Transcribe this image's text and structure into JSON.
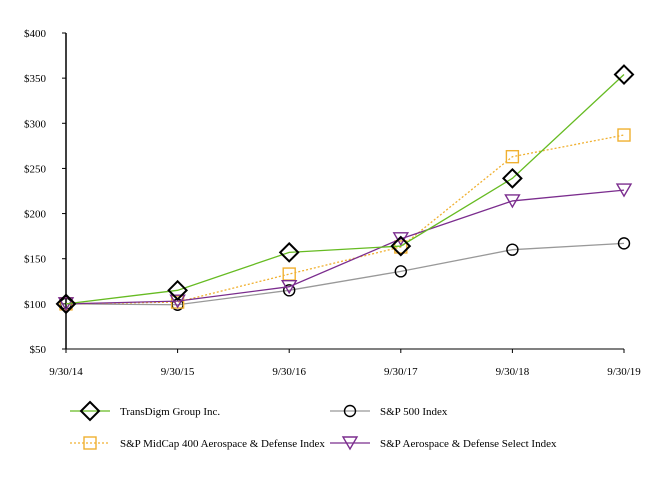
{
  "chart_data": {
    "type": "line",
    "title": "",
    "xlabel": "",
    "ylabel": "",
    "categories": [
      "9/30/14",
      "9/30/15",
      "9/30/16",
      "9/30/17",
      "9/30/18",
      "9/30/19"
    ],
    "ylim": [
      50,
      400
    ],
    "yticks": [
      50,
      100,
      150,
      200,
      250,
      300,
      350,
      400
    ],
    "ytick_labels": [
      "$50",
      "$100",
      "$150",
      "$200",
      "$250",
      "$300",
      "$350",
      "$400"
    ],
    "grid": false,
    "legend_position": "bottom",
    "series": [
      {
        "name": "TransDigm Group Inc.",
        "values": [
          100,
          115,
          157,
          164,
          239,
          354
        ],
        "color": "#66bb22",
        "marker": "diamond",
        "marker_color": "#000000",
        "dash": "solid"
      },
      {
        "name": "S&P 500 Index",
        "values": [
          100,
          99,
          115,
          136,
          160,
          167
        ],
        "color": "#999999",
        "marker": "circle",
        "marker_color": "#000000",
        "dash": "solid"
      },
      {
        "name": "S&P MidCap 400 Aerospace & Defense Index",
        "values": [
          100,
          102,
          133,
          163,
          263,
          287
        ],
        "color": "#f0b030",
        "marker": "square",
        "marker_color": "#f0b030",
        "dash": "dotted"
      },
      {
        "name": "S&P Aerospace & Defense Select Index",
        "values": [
          100,
          103,
          119,
          172,
          214,
          226
        ],
        "color": "#7b2d8e",
        "marker": "triangle-down",
        "marker_color": "#7b2d8e",
        "dash": "solid"
      }
    ]
  }
}
